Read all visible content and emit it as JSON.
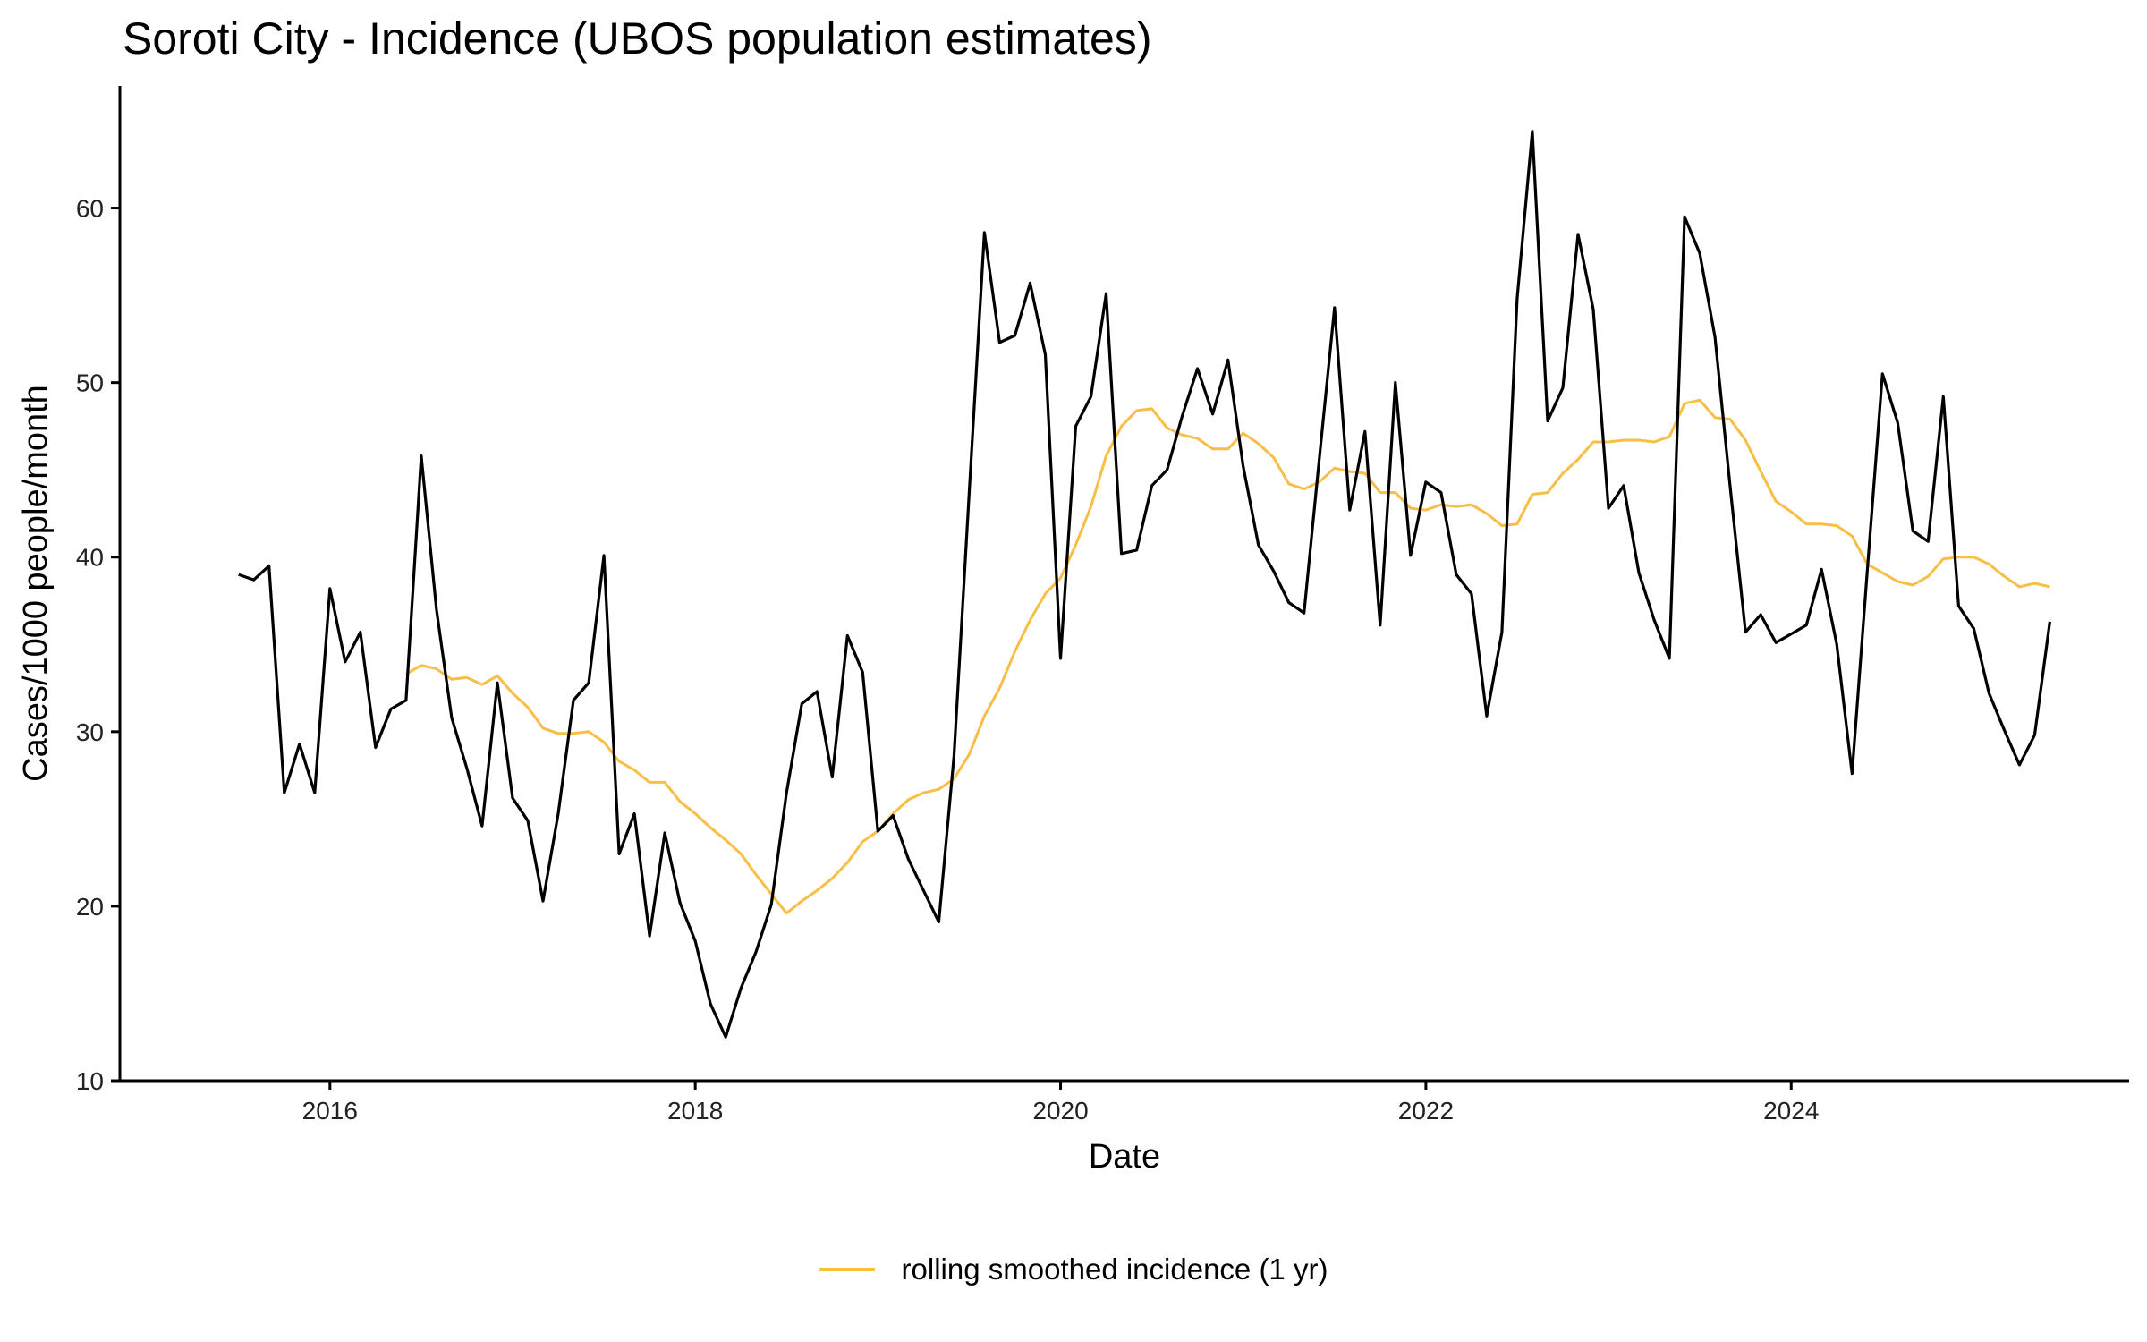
{
  "title": "Soroti City - Incidence (UBOS population estimates)",
  "colors": {
    "incidence": "#000000",
    "rolling": "#F9BE45",
    "axis": "#000000"
  },
  "chart_data": {
    "type": "line",
    "title": "Soroti City - Incidence (UBOS population estimates)",
    "xlabel": "Date",
    "ylabel": "Cases/1000 people/month",
    "xlim": [
      2014.85,
      2025.85
    ],
    "ylim": [
      10,
      67
    ],
    "x_ticks": [
      2016,
      2018,
      2020,
      2022,
      2024
    ],
    "x_tick_labels": [
      "2016",
      "2018",
      "2020",
      "2022",
      "2024"
    ],
    "y_ticks": [
      10,
      20,
      30,
      40,
      50,
      60
    ],
    "y_tick_labels": [
      "10",
      "20",
      "30",
      "40",
      "50",
      "60"
    ],
    "grid": false,
    "legend_position": "bottom",
    "x_start": 2015.5,
    "x_step": 0.08333,
    "series": [
      {
        "name": "incidence",
        "show_in_legend": false,
        "color": "#000000",
        "start_index": 0,
        "values": [
          39.0,
          38.7,
          39.5,
          26.5,
          29.3,
          26.5,
          38.2,
          34.0,
          35.7,
          29.1,
          31.3,
          31.8,
          45.8,
          37.0,
          30.8,
          27.9,
          24.6,
          32.8,
          26.2,
          24.9,
          20.3,
          25.3,
          31.8,
          32.8,
          40.1,
          23.0,
          25.3,
          18.3,
          24.2,
          20.2,
          18.0,
          14.4,
          12.5,
          15.3,
          17.4,
          20.1,
          26.5,
          31.6,
          32.3,
          27.4,
          35.5,
          33.4,
          24.3,
          25.2,
          22.7,
          20.9,
          19.1,
          28.6,
          43.7,
          58.6,
          52.3,
          52.7,
          55.7,
          51.6,
          34.2,
          47.5,
          49.2,
          55.1,
          40.2,
          40.4,
          44.1,
          45.0,
          48.1,
          50.8,
          48.2,
          51.3,
          45.2,
          40.7,
          39.2,
          37.4,
          36.8,
          45.6,
          54.3,
          42.7,
          47.2,
          36.1,
          50.0,
          40.1,
          44.3,
          43.7,
          39.0,
          37.9,
          30.9,
          35.7,
          54.8,
          64.4,
          47.8,
          49.7,
          58.5,
          54.2,
          42.8,
          44.1,
          39.1,
          36.4,
          34.2,
          59.5,
          57.4,
          52.6,
          44.0,
          35.7,
          36.7,
          35.1,
          35.6,
          36.1,
          39.3,
          35.0,
          27.6,
          39.2,
          50.5,
          47.7,
          41.5,
          40.9,
          49.2,
          37.2,
          35.9,
          32.2,
          30.1,
          28.1,
          29.8,
          36.3
        ]
      },
      {
        "name": "rolling smoothed incidence (1 yr)",
        "show_in_legend": true,
        "color": "#F9BE45",
        "start_index": 11,
        "values": [
          33.3,
          33.8,
          33.6,
          33.0,
          33.1,
          32.7,
          33.2,
          32.2,
          31.4,
          30.2,
          29.9,
          29.9,
          30.0,
          29.4,
          28.3,
          27.8,
          27.1,
          27.1,
          26.0,
          25.3,
          24.5,
          23.8,
          23.0,
          21.8,
          20.7,
          19.6,
          20.3,
          20.9,
          21.6,
          22.5,
          23.7,
          24.3,
          25.3,
          26.1,
          26.5,
          26.7,
          27.3,
          28.7,
          30.9,
          32.5,
          34.6,
          36.4,
          37.9,
          38.8,
          40.7,
          42.9,
          45.8,
          47.5,
          48.4,
          48.5,
          47.4,
          47.0,
          46.8,
          46.2,
          46.2,
          47.1,
          46.5,
          45.7,
          44.2,
          43.9,
          44.3,
          45.1,
          44.9,
          44.8,
          43.7,
          43.7,
          42.8,
          42.7,
          43.0,
          42.9,
          43.0,
          42.5,
          41.8,
          41.9,
          43.6,
          43.7,
          44.8,
          45.6,
          46.6,
          46.6,
          46.7,
          46.7,
          46.6,
          46.9,
          48.8,
          49.0,
          48.0,
          47.9,
          46.7,
          44.9,
          43.2,
          42.6,
          41.9,
          41.9,
          41.8,
          41.2,
          39.6,
          39.1,
          38.6,
          38.4,
          38.9,
          39.9,
          40.0,
          40.0,
          39.6,
          38.9,
          38.3,
          38.5,
          38.3
        ]
      }
    ]
  }
}
